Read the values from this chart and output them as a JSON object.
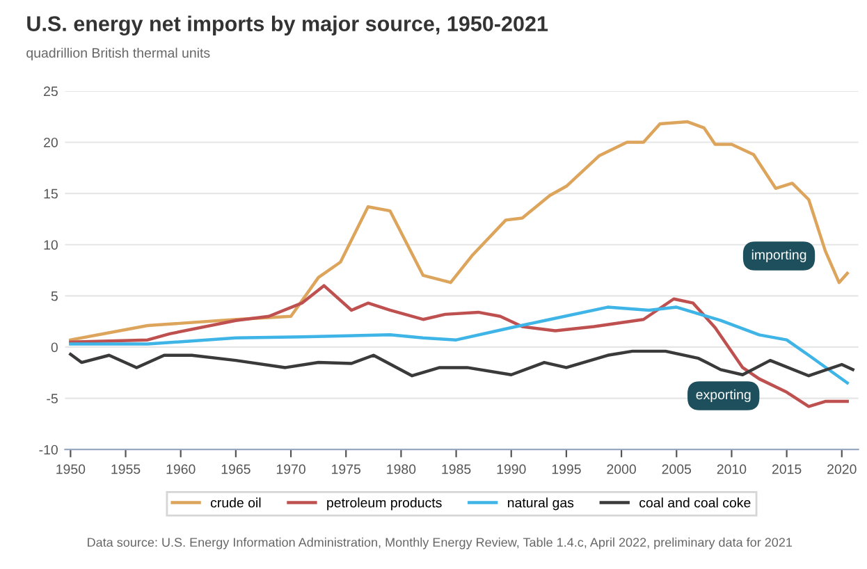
{
  "chart_data": {
    "type": "line",
    "title": "U.S. energy net imports by major source, 1950-2021",
    "subtitle": "quadrillion British thermal units",
    "xlim": [
      1949.5,
      2021.5
    ],
    "xticks": [
      1950,
      1955,
      1960,
      1965,
      1970,
      1975,
      1980,
      1985,
      1990,
      1995,
      2000,
      2005,
      2010,
      2015,
      2020
    ],
    "ylim": [
      -10,
      25
    ],
    "yticks": [
      -10,
      -5,
      0,
      5,
      10,
      15,
      20,
      25
    ],
    "grid": "y",
    "legend": "bottom",
    "line_style": "solid",
    "marker": "none",
    "series": [
      {
        "name": "crude oil",
        "color": "#dda45c",
        "x": [
          1950,
          1957,
          1965,
          1970,
          1972.5,
          1974.5,
          1977,
          1979,
          1982,
          1984.5,
          1986.5,
          1989.5,
          1991,
          1993.5,
          1995,
          1998,
          2000.5,
          2002,
          2003.5,
          2006,
          2007.5,
          2008.5,
          2010,
          2012,
          2014,
          2015.5,
          2017,
          2018.5,
          2019.75,
          2020.5
        ],
        "values": [
          0.7,
          2.1,
          2.7,
          3.0,
          6.8,
          8.3,
          13.7,
          13.3,
          7.0,
          6.3,
          9.0,
          12.4,
          12.6,
          14.8,
          15.7,
          18.7,
          20.0,
          20.0,
          21.8,
          22.0,
          21.4,
          19.8,
          19.8,
          18.8,
          15.5,
          16.0,
          14.4,
          9.4,
          6.3,
          7.2
        ]
      },
      {
        "name": "petroleum products",
        "color": "#bf5050",
        "x": [
          1950,
          1957,
          1959,
          1965,
          1968,
          1971,
          1973,
          1975.5,
          1977,
          1979,
          1982,
          1984,
          1987,
          1989,
          1991,
          1994,
          1997.5,
          2002,
          2004.75,
          2006.5,
          2008.5,
          2011,
          2012.5,
          2015,
          2017,
          2018.5,
          2020.5
        ],
        "values": [
          0.5,
          0.7,
          1.3,
          2.6,
          3.0,
          4.3,
          6.0,
          3.6,
          4.3,
          3.6,
          2.7,
          3.2,
          3.4,
          3.0,
          2.0,
          1.6,
          2.0,
          2.7,
          4.7,
          4.3,
          1.9,
          -2.0,
          -3.1,
          -4.4,
          -5.8,
          -5.3,
          -5.3
        ]
      },
      {
        "name": "natural gas",
        "color": "#3fb4e6",
        "x": [
          1950,
          1957,
          1965,
          1971,
          1979,
          1982,
          1985,
          1990,
          1993.5,
          1998.75,
          2002.5,
          2005,
          2009,
          2012.5,
          2015,
          2017,
          2020.5
        ],
        "values": [
          0.3,
          0.3,
          0.9,
          1.0,
          1.2,
          0.9,
          0.7,
          1.9,
          2.7,
          3.9,
          3.6,
          3.9,
          2.6,
          1.2,
          0.7,
          -0.8,
          -3.5
        ]
      },
      {
        "name": "coal and coal coke",
        "color": "#3a3a3a",
        "x": [
          1950,
          1951,
          1953.5,
          1956,
          1958.5,
          1961,
          1965,
          1969.5,
          1972.5,
          1975.5,
          1977.5,
          1981,
          1983.5,
          1986,
          1990,
          1993,
          1995,
          1998.75,
          2001,
          2004,
          2007,
          2009,
          2011,
          2013.5,
          2017,
          2020,
          2021
        ],
        "values": [
          -0.7,
          -1.5,
          -0.8,
          -2.0,
          -0.8,
          -0.8,
          -1.3,
          -2.0,
          -1.5,
          -1.6,
          -0.8,
          -2.8,
          -2.0,
          -2.0,
          -2.7,
          -1.5,
          -2.0,
          -0.8,
          -0.4,
          -0.4,
          -1.1,
          -2.2,
          -2.7,
          -1.3,
          -2.8,
          -1.7,
          -2.2
        ]
      }
    ],
    "annotations": [
      "importing",
      "exporting",
      "Data source: U.S. Energy Information Administration, Monthly Energy Review, Table 1.4.c, April 2022, preliminary data for 2021"
    ]
  }
}
